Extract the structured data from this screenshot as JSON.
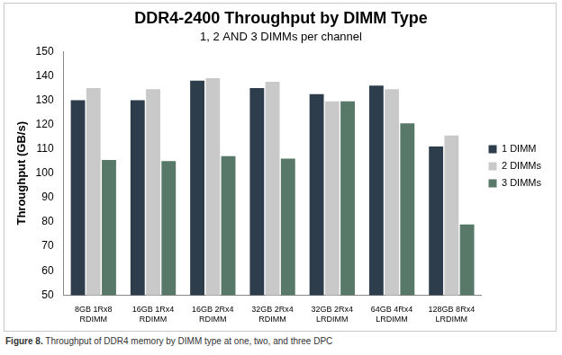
{
  "chart_data": {
    "type": "bar",
    "title": "DDR4-2400 Throughput by DIMM Type",
    "subtitle": "1, 2 AND 3 DIMMs per channel",
    "y_label": "Throughput (GB/s)",
    "categories": [
      [
        "8GB 1Rx8",
        "RDIMM"
      ],
      [
        "16GB 1Rx4",
        "RDIMM"
      ],
      [
        "16GB 2Rx4",
        "RDIMM"
      ],
      [
        "32GB 2Rx4",
        "RDIMM"
      ],
      [
        "32GB 2Rx4",
        "LRDIMM"
      ],
      [
        "64GB 4Rx4",
        "LRDIMM"
      ],
      [
        "128GB 8Rx4",
        "LRDIMM"
      ]
    ],
    "series": [
      {
        "name": "1 DIMM",
        "color": "#2e3d4b",
        "values": [
          130,
          130,
          138,
          135,
          132.5,
          136,
          111
        ]
      },
      {
        "name": "2 DIMMs",
        "color": "#c9c9c9",
        "values": [
          135,
          134.5,
          139,
          137.5,
          129.5,
          134.5,
          115.5
        ]
      },
      {
        "name": "3 DIMMs",
        "color": "#587869",
        "values": [
          105.5,
          105,
          107,
          106,
          129.5,
          120.5,
          79
        ]
      }
    ],
    "ylim": [
      50,
      150
    ],
    "yticks": [
      50,
      60,
      70,
      80,
      90,
      100,
      110,
      120,
      130,
      140,
      150
    ],
    "grid": false,
    "legend": "right",
    "caption": {
      "label": "Figure 8.",
      "text": "Throughput of DDR4 memory by DIMM type at one, two, and three DPC"
    }
  }
}
